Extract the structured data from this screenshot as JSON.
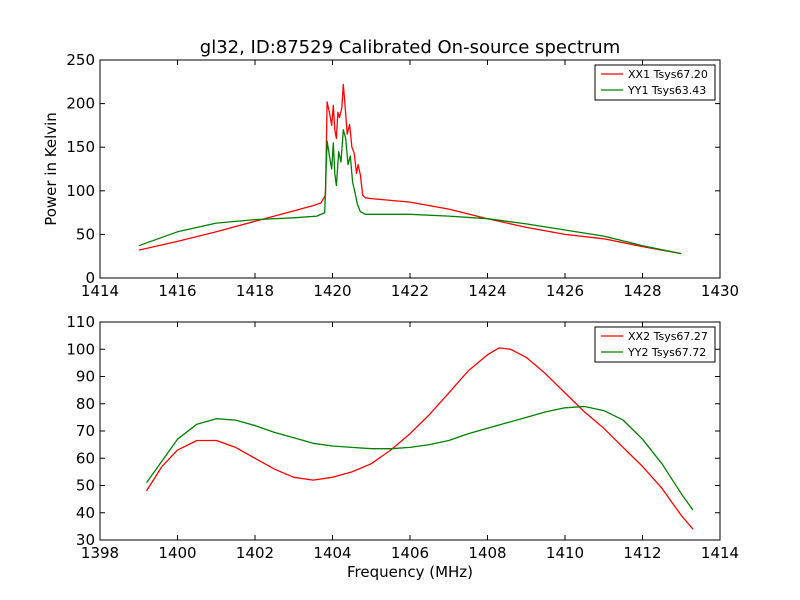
{
  "colors": {
    "red": "#ff0000",
    "green": "#008000",
    "axis": "#000000"
  },
  "chart_data": [
    {
      "type": "line",
      "title": "gl32, ID:87529 Calibrated On-source spectrum",
      "xlabel": "",
      "ylabel": "Power in Kelvin",
      "xlim": [
        1414,
        1430
      ],
      "ylim": [
        0,
        250
      ],
      "xticks": [
        "1414",
        "1416",
        "1418",
        "1420",
        "1422",
        "1424",
        "1426",
        "1428",
        "1430"
      ],
      "yticks": [
        "0",
        "50",
        "100",
        "150",
        "200",
        "250"
      ],
      "legend_position": "top-right",
      "series": [
        {
          "name": "XX1 Tsys67.20",
          "color": "#ff0000",
          "points": [
            [
              1415,
              32
            ],
            [
              1416,
              42
            ],
            [
              1417,
              53
            ],
            [
              1418,
              65
            ],
            [
              1419,
              77
            ],
            [
              1419.5,
              83
            ],
            [
              1419.7,
              86
            ],
            [
              1419.82,
              95
            ],
            [
              1419.86,
              202
            ],
            [
              1419.92,
              190
            ],
            [
              1419.98,
              175
            ],
            [
              1420.02,
              198
            ],
            [
              1420.06,
              170
            ],
            [
              1420.1,
              160
            ],
            [
              1420.14,
              190
            ],
            [
              1420.18,
              184
            ],
            [
              1420.24,
              195
            ],
            [
              1420.28,
              222
            ],
            [
              1420.32,
              200
            ],
            [
              1420.38,
              165
            ],
            [
              1420.44,
              176
            ],
            [
              1420.5,
              150
            ],
            [
              1420.56,
              143
            ],
            [
              1420.62,
              120
            ],
            [
              1420.66,
              130
            ],
            [
              1420.72,
              118
            ],
            [
              1420.78,
              95
            ],
            [
              1420.85,
              92
            ],
            [
              1421,
              91
            ],
            [
              1422,
              87
            ],
            [
              1423,
              79
            ],
            [
              1424,
              68
            ],
            [
              1425,
              58
            ],
            [
              1426,
              50
            ],
            [
              1427,
              45
            ],
            [
              1428,
              36
            ],
            [
              1429,
              28
            ]
          ]
        },
        {
          "name": "YY1 Tsys63.43",
          "color": "#008000",
          "points": [
            [
              1415,
              37
            ],
            [
              1416,
              53
            ],
            [
              1417,
              63
            ],
            [
              1418,
              67
            ],
            [
              1419,
              69
            ],
            [
              1419.6,
              71
            ],
            [
              1419.8,
              75
            ],
            [
              1419.86,
              157
            ],
            [
              1419.92,
              140
            ],
            [
              1419.98,
              125
            ],
            [
              1420.02,
              155
            ],
            [
              1420.06,
              120
            ],
            [
              1420.1,
              106
            ],
            [
              1420.16,
              145
            ],
            [
              1420.22,
              133
            ],
            [
              1420.28,
              170
            ],
            [
              1420.34,
              160
            ],
            [
              1420.4,
              130
            ],
            [
              1420.46,
              140
            ],
            [
              1420.52,
              110
            ],
            [
              1420.58,
              98
            ],
            [
              1420.64,
              85
            ],
            [
              1420.72,
              76
            ],
            [
              1420.85,
              73
            ],
            [
              1421,
              73
            ],
            [
              1422,
              73
            ],
            [
              1423,
              71
            ],
            [
              1424,
              68
            ],
            [
              1425,
              62
            ],
            [
              1426,
              55
            ],
            [
              1427,
              48
            ],
            [
              1428,
              37
            ],
            [
              1429,
              28
            ]
          ]
        }
      ]
    },
    {
      "type": "line",
      "title": "",
      "xlabel": "Frequency (MHz)",
      "ylabel": "",
      "xlim": [
        1398,
        1414
      ],
      "ylim": [
        30,
        110
      ],
      "xticks": [
        "1398",
        "1400",
        "1402",
        "1404",
        "1406",
        "1408",
        "1410",
        "1412",
        "1414"
      ],
      "yticks": [
        "30",
        "40",
        "50",
        "60",
        "70",
        "80",
        "90",
        "100",
        "110"
      ],
      "legend_position": "top-right",
      "series": [
        {
          "name": "XX2 Tsys67.27",
          "color": "#ff0000",
          "points": [
            [
              1399.2,
              48
            ],
            [
              1399.6,
              57
            ],
            [
              1400,
              63
            ],
            [
              1400.5,
              66.5
            ],
            [
              1401,
              66.5
            ],
            [
              1401.5,
              64
            ],
            [
              1402,
              60
            ],
            [
              1402.5,
              56
            ],
            [
              1403,
              53
            ],
            [
              1403.5,
              52
            ],
            [
              1404,
              53
            ],
            [
              1404.5,
              55
            ],
            [
              1405,
              58
            ],
            [
              1405.5,
              63
            ],
            [
              1406,
              69
            ],
            [
              1406.5,
              76
            ],
            [
              1407,
              84
            ],
            [
              1407.5,
              92
            ],
            [
              1408,
              98
            ],
            [
              1408.3,
              100.5
            ],
            [
              1408.6,
              100
            ],
            [
              1409,
              97
            ],
            [
              1409.5,
              91
            ],
            [
              1410,
              84
            ],
            [
              1410.5,
              77
            ],
            [
              1411,
              71
            ],
            [
              1411.5,
              64
            ],
            [
              1412,
              57
            ],
            [
              1412.5,
              49
            ],
            [
              1413,
              39
            ],
            [
              1413.3,
              34
            ]
          ]
        },
        {
          "name": "YY2 Tsys67.72",
          "color": "#008000",
          "points": [
            [
              1399.2,
              51
            ],
            [
              1399.6,
              59
            ],
            [
              1400,
              67
            ],
            [
              1400.5,
              72.5
            ],
            [
              1401,
              74.5
            ],
            [
              1401.5,
              74
            ],
            [
              1402,
              72
            ],
            [
              1402.5,
              69.5
            ],
            [
              1403,
              67.5
            ],
            [
              1403.5,
              65.5
            ],
            [
              1404,
              64.5
            ],
            [
              1404.5,
              64
            ],
            [
              1405,
              63.5
            ],
            [
              1405.5,
              63.5
            ],
            [
              1406,
              64
            ],
            [
              1406.5,
              65
            ],
            [
              1407,
              66.5
            ],
            [
              1407.5,
              69
            ],
            [
              1408,
              71
            ],
            [
              1408.5,
              73
            ],
            [
              1409,
              75
            ],
            [
              1409.5,
              77
            ],
            [
              1410,
              78.5
            ],
            [
              1410.5,
              79
            ],
            [
              1411,
              77.5
            ],
            [
              1411.5,
              74
            ],
            [
              1412,
              67
            ],
            [
              1412.5,
              58
            ],
            [
              1413,
              47
            ],
            [
              1413.3,
              41
            ]
          ]
        }
      ]
    }
  ]
}
